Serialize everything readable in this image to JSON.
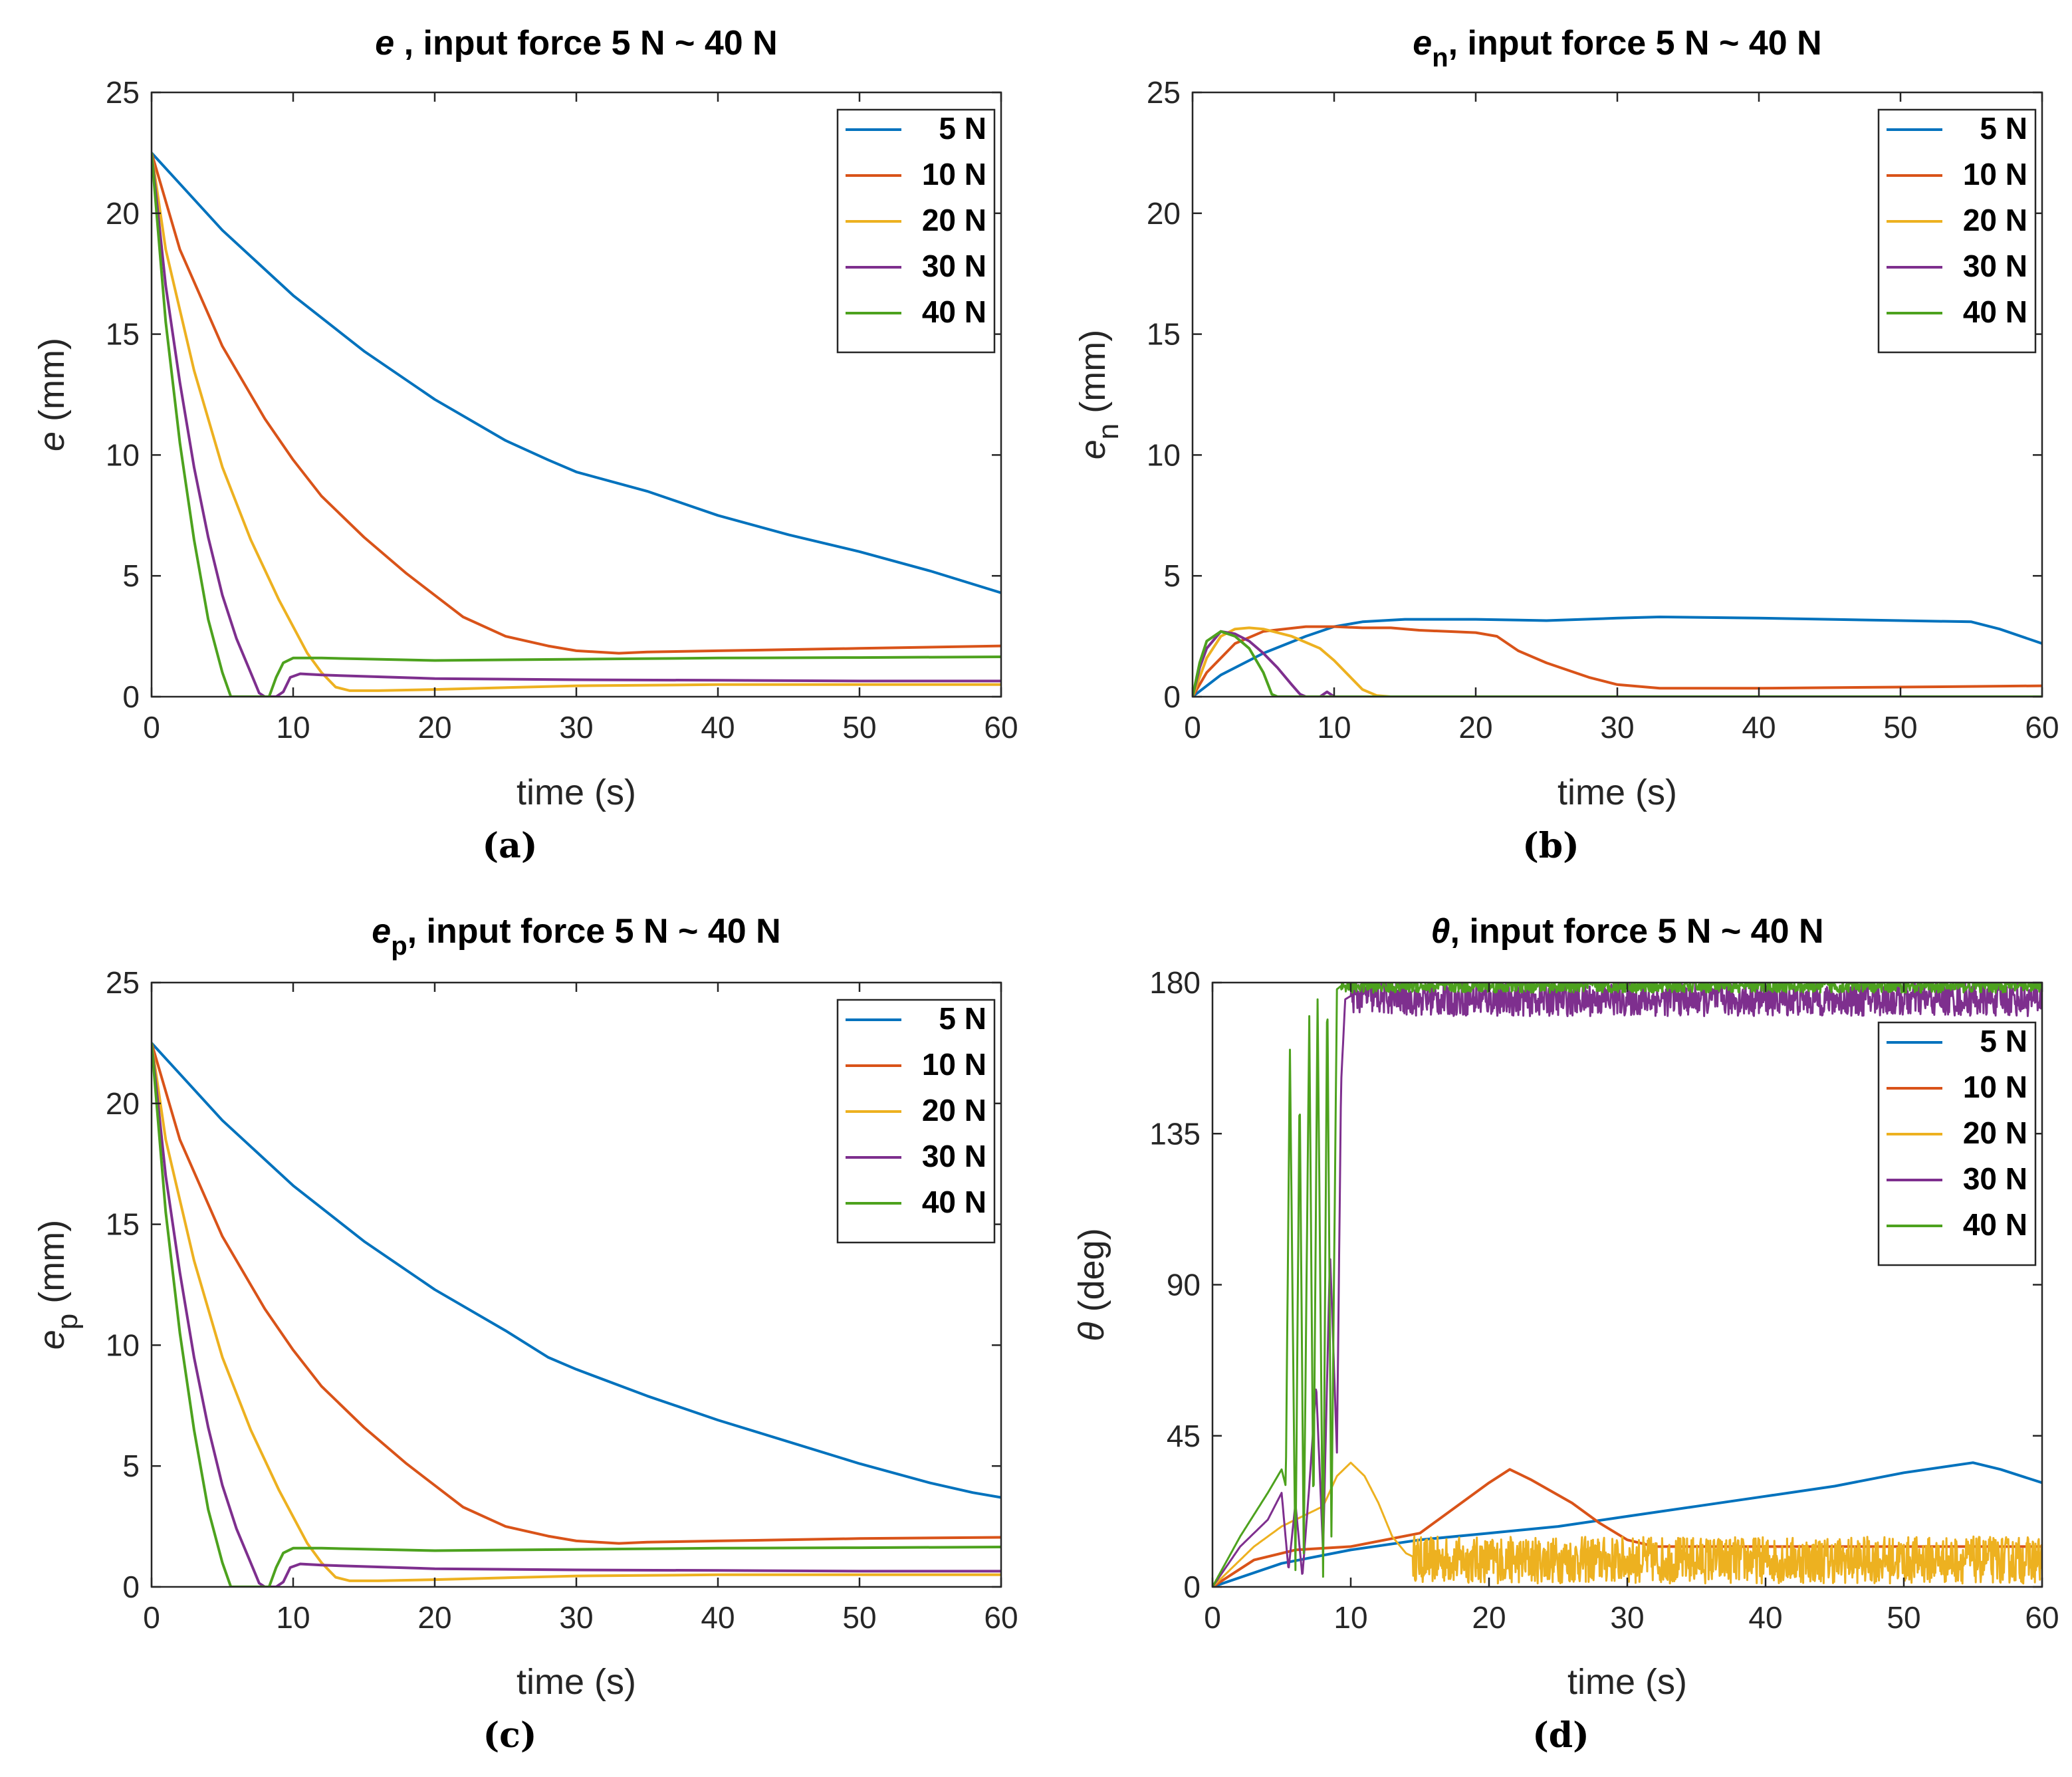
{
  "chart_data": [
    {
      "id": "a",
      "type": "line",
      "title_main": "e",
      "title_sub": "",
      "title_rest": " , input force 5 N ~ 40 N",
      "xlabel": "time (s)",
      "ylabel_main": "e",
      "ylabel_sub": "",
      "ylabel_unit": "  (mm)",
      "xlim": [
        0,
        60
      ],
      "ylim": [
        0,
        25
      ],
      "xticks": [
        "0",
        "10",
        "20",
        "30",
        "40",
        "50",
        "60"
      ],
      "yticks": [
        "0",
        "5",
        "10",
        "15",
        "20",
        "25"
      ],
      "legend": "top-right",
      "panel_label": "(a)",
      "series": [
        {
          "name": "5 N",
          "color": "#0072BD",
          "x": [
            0,
            5,
            10,
            15,
            20,
            25,
            28,
            30,
            35,
            40,
            45,
            50,
            55,
            60
          ],
          "y": [
            22.5,
            19.3,
            16.6,
            14.3,
            12.3,
            10.6,
            9.8,
            9.3,
            8.5,
            7.5,
            6.7,
            6.0,
            5.2,
            4.3
          ]
        },
        {
          "name": "10 N",
          "color": "#D95319",
          "x": [
            0,
            2,
            5,
            8,
            10,
            12,
            15,
            18,
            20,
            22,
            25,
            28,
            30,
            33,
            35,
            40,
            50,
            60
          ],
          "y": [
            22.5,
            18.5,
            14.5,
            11.5,
            9.8,
            8.3,
            6.6,
            5.1,
            4.2,
            3.3,
            2.5,
            2.1,
            1.9,
            1.8,
            1.85,
            1.9,
            2.0,
            2.1
          ]
        },
        {
          "name": "20 N",
          "color": "#EDB120",
          "x": [
            0,
            1,
            3,
            5,
            7,
            9,
            11,
            12,
            13,
            14,
            16,
            20,
            30,
            40,
            50,
            60
          ],
          "y": [
            22.5,
            18.5,
            13.5,
            9.5,
            6.5,
            4.0,
            1.8,
            1.0,
            0.4,
            0.25,
            0.25,
            0.3,
            0.45,
            0.5,
            0.5,
            0.5
          ]
        },
        {
          "name": "30 N",
          "color": "#7E2F8E",
          "x": [
            0,
            1,
            2,
            3,
            4,
            5,
            6,
            7,
            7.6,
            8,
            8.8,
            9.3,
            9.8,
            10.5,
            12,
            20,
            30,
            40,
            50,
            60
          ],
          "y": [
            22.5,
            17.0,
            13.0,
            9.5,
            6.6,
            4.2,
            2.4,
            1.0,
            0.15,
            0,
            0,
            0.2,
            0.8,
            0.95,
            0.9,
            0.75,
            0.7,
            0.68,
            0.65,
            0.65
          ]
        },
        {
          "name": "40 N",
          "color": "#4DA21E",
          "x": [
            0,
            1,
            2,
            3,
            4,
            5,
            5.6,
            6,
            8.3,
            8.8,
            9.3,
            10,
            12,
            20,
            30,
            40,
            50,
            60
          ],
          "y": [
            22.5,
            15.5,
            10.5,
            6.5,
            3.2,
            1.0,
            0,
            0,
            0,
            0.8,
            1.4,
            1.6,
            1.6,
            1.5,
            1.55,
            1.6,
            1.62,
            1.65
          ]
        }
      ]
    },
    {
      "id": "b",
      "type": "line",
      "title_main": "e",
      "title_sub": "n",
      "title_rest": ", input force 5 N ~ 40 N",
      "xlabel": "time (s)",
      "ylabel_main": "e",
      "ylabel_sub": "n",
      "ylabel_unit": " (mm)",
      "xlim": [
        0,
        60
      ],
      "ylim": [
        0,
        25
      ],
      "xticks": [
        "0",
        "10",
        "20",
        "30",
        "40",
        "50",
        "60"
      ],
      "yticks": [
        "0",
        "5",
        "10",
        "15",
        "20",
        "25"
      ],
      "legend": "top-right",
      "panel_label": "(b)",
      "series": [
        {
          "name": "5 N",
          "color": "#0072BD",
          "x": [
            0,
            2,
            5,
            8,
            10,
            12,
            15,
            20,
            25,
            30,
            33,
            40,
            45,
            50,
            55,
            57,
            60
          ],
          "y": [
            0,
            0.9,
            1.8,
            2.5,
            2.9,
            3.1,
            3.2,
            3.2,
            3.15,
            3.25,
            3.3,
            3.25,
            3.2,
            3.15,
            3.1,
            2.8,
            2.2
          ]
        },
        {
          "name": "10 N",
          "color": "#D95319",
          "x": [
            0,
            1,
            3,
            5,
            8,
            10,
            12,
            14,
            16,
            18,
            20,
            21.5,
            23,
            25,
            28,
            30,
            33,
            40,
            50,
            60
          ],
          "y": [
            0,
            1.0,
            2.2,
            2.7,
            2.9,
            2.9,
            2.85,
            2.85,
            2.75,
            2.7,
            2.65,
            2.5,
            1.9,
            1.4,
            0.8,
            0.5,
            0.35,
            0.35,
            0.4,
            0.45
          ]
        },
        {
          "name": "20 N",
          "color": "#EDB120",
          "x": [
            0,
            1,
            2,
            3,
            4,
            5,
            7,
            9,
            10,
            11,
            12,
            13,
            14,
            20,
            30,
            40,
            50,
            60
          ],
          "y": [
            0,
            1.6,
            2.5,
            2.8,
            2.85,
            2.8,
            2.5,
            2.0,
            1.5,
            0.9,
            0.3,
            0.05,
            0,
            0,
            0,
            0,
            0,
            0
          ]
        },
        {
          "name": "30 N",
          "color": "#7E2F8E",
          "x": [
            0,
            0.5,
            1,
            2,
            3,
            4,
            5,
            6,
            7,
            7.6,
            8,
            9,
            9.5,
            10,
            11,
            20,
            30,
            40,
            50,
            60
          ],
          "y": [
            0,
            1.2,
            2.0,
            2.7,
            2.6,
            2.3,
            1.8,
            1.2,
            0.5,
            0.1,
            0,
            0,
            0.2,
            0,
            0,
            0,
            0,
            0,
            0,
            0
          ]
        },
        {
          "name": "40 N",
          "color": "#4DA21E",
          "x": [
            0,
            0.5,
            1,
            2,
            3,
            4,
            5,
            5.6,
            6,
            60
          ],
          "y": [
            0,
            1.4,
            2.3,
            2.7,
            2.5,
            2.0,
            1.0,
            0.1,
            0,
            0
          ]
        }
      ]
    },
    {
      "id": "c",
      "type": "line",
      "title_main": "e",
      "title_sub": "p",
      "title_rest": ", input force 5 N ~ 40 N",
      "xlabel": "time (s)",
      "ylabel_main": "e",
      "ylabel_sub": "p",
      "ylabel_unit": " (mm)",
      "xlim": [
        0,
        60
      ],
      "ylim": [
        0,
        25
      ],
      "xticks": [
        "0",
        "10",
        "20",
        "30",
        "40",
        "50",
        "60"
      ],
      "yticks": [
        "0",
        "5",
        "10",
        "15",
        "20",
        "25"
      ],
      "legend": "top-right",
      "panel_label": "(c)",
      "series": [
        {
          "name": "5 N",
          "color": "#0072BD",
          "x": [
            0,
            5,
            10,
            15,
            20,
            25,
            28,
            30,
            35,
            40,
            45,
            50,
            55,
            58,
            60
          ],
          "y": [
            22.5,
            19.3,
            16.6,
            14.3,
            12.3,
            10.6,
            9.5,
            9.0,
            7.9,
            6.9,
            6.0,
            5.1,
            4.3,
            3.9,
            3.7
          ]
        },
        {
          "name": "10 N",
          "color": "#D95319",
          "x": [
            0,
            2,
            5,
            8,
            10,
            12,
            15,
            18,
            20,
            22,
            25,
            28,
            30,
            33,
            35,
            40,
            50,
            60
          ],
          "y": [
            22.5,
            18.5,
            14.5,
            11.5,
            9.8,
            8.3,
            6.6,
            5.1,
            4.2,
            3.3,
            2.5,
            2.1,
            1.9,
            1.8,
            1.85,
            1.9,
            2.0,
            2.05
          ]
        },
        {
          "name": "20 N",
          "color": "#EDB120",
          "x": [
            0,
            1,
            3,
            5,
            7,
            9,
            11,
            12,
            13,
            14,
            16,
            20,
            30,
            40,
            50,
            60
          ],
          "y": [
            22.5,
            18.5,
            13.5,
            9.5,
            6.5,
            4.0,
            1.8,
            1.0,
            0.4,
            0.25,
            0.25,
            0.3,
            0.45,
            0.5,
            0.5,
            0.5
          ]
        },
        {
          "name": "30 N",
          "color": "#7E2F8E",
          "x": [
            0,
            1,
            2,
            3,
            4,
            5,
            6,
            7,
            7.6,
            8,
            8.8,
            9.3,
            9.8,
            10.5,
            12,
            20,
            30,
            40,
            50,
            60
          ],
          "y": [
            22.5,
            17.0,
            13.0,
            9.5,
            6.6,
            4.2,
            2.4,
            1.0,
            0.15,
            0,
            0,
            0.2,
            0.8,
            0.95,
            0.9,
            0.75,
            0.7,
            0.68,
            0.65,
            0.65
          ]
        },
        {
          "name": "40 N",
          "color": "#4DA21E",
          "x": [
            0,
            1,
            2,
            3,
            4,
            5,
            5.6,
            6,
            8.3,
            8.8,
            9.3,
            10,
            12,
            20,
            30,
            40,
            50,
            60
          ],
          "y": [
            22.5,
            15.5,
            10.5,
            6.5,
            3.2,
            1.0,
            0,
            0,
            0,
            0.8,
            1.4,
            1.6,
            1.6,
            1.5,
            1.55,
            1.6,
            1.62,
            1.65
          ]
        }
      ]
    },
    {
      "id": "d",
      "type": "line",
      "title_main": "θ",
      "title_sub": "",
      "title_rest": ", input force 5 N ~ 40 N",
      "xlabel": "time (s)",
      "ylabel_main": "θ",
      "ylabel_sub": "",
      "ylabel_unit": " (deg)",
      "xlim": [
        0,
        60
      ],
      "ylim": [
        0,
        180
      ],
      "xticks": [
        "0",
        "10",
        "20",
        "30",
        "40",
        "50",
        "60"
      ],
      "yticks": [
        "0",
        "45",
        "90",
        "135",
        "180"
      ],
      "legend": "upper-right",
      "panel_label": "(d)",
      "series": [
        {
          "name": "5 N",
          "color": "#0072BD",
          "x": [
            0,
            5,
            10,
            15,
            20,
            25,
            30,
            35,
            40,
            45,
            50,
            55,
            57,
            60
          ],
          "y": [
            0,
            7,
            11,
            14,
            16,
            18,
            21,
            24,
            27,
            30,
            34,
            37,
            35,
            31
          ]
        },
        {
          "name": "10 N",
          "color": "#D95319",
          "x": [
            0,
            3,
            6,
            10,
            15,
            20,
            21.5,
            23,
            26,
            28,
            30,
            32,
            35,
            40,
            50,
            60
          ],
          "y": [
            0,
            8,
            11,
            12,
            16,
            31,
            35,
            32,
            25,
            19,
            14,
            12,
            12,
            12,
            12,
            12
          ]
        },
        {
          "name": "20 N",
          "color": "#EDB120",
          "x": [
            0,
            3,
            5,
            8,
            9,
            10,
            11,
            12,
            13,
            14,
            14.5,
            15,
            60
          ],
          "y": [
            0,
            12,
            18,
            24,
            33,
            37,
            33,
            25,
            15,
            10,
            9,
            8,
            8
          ],
          "noise": {
            "from": 14.5,
            "amplitude": 7
          }
        },
        {
          "name": "30 N",
          "color": "#7E2F8E",
          "x": [
            0,
            2,
            4,
            5,
            5.5,
            6,
            6.5,
            7,
            7.5,
            8,
            8.5,
            9,
            9.3,
            9.6,
            10,
            15,
            60
          ],
          "y": [
            0,
            12,
            20,
            28,
            5,
            25,
            3,
            30,
            60,
            10,
            100,
            40,
            150,
            175,
            176,
            175,
            175
          ],
          "noise": {
            "from": 10,
            "amplitude": 5
          }
        },
        {
          "name": "40 N",
          "color": "#4DA21E",
          "x": [
            0,
            2,
            4,
            5,
            5.3,
            5.6,
            6,
            6.3,
            6.6,
            7,
            7.3,
            7.6,
            8,
            8.3,
            8.6,
            9,
            9.3,
            60
          ],
          "y": [
            0,
            15,
            28,
            35,
            30,
            160,
            5,
            150,
            10,
            170,
            20,
            175,
            3,
            180,
            15,
            178,
            179,
            179
          ],
          "noise": {
            "from": 9.3,
            "amplitude": 2
          }
        }
      ]
    }
  ]
}
